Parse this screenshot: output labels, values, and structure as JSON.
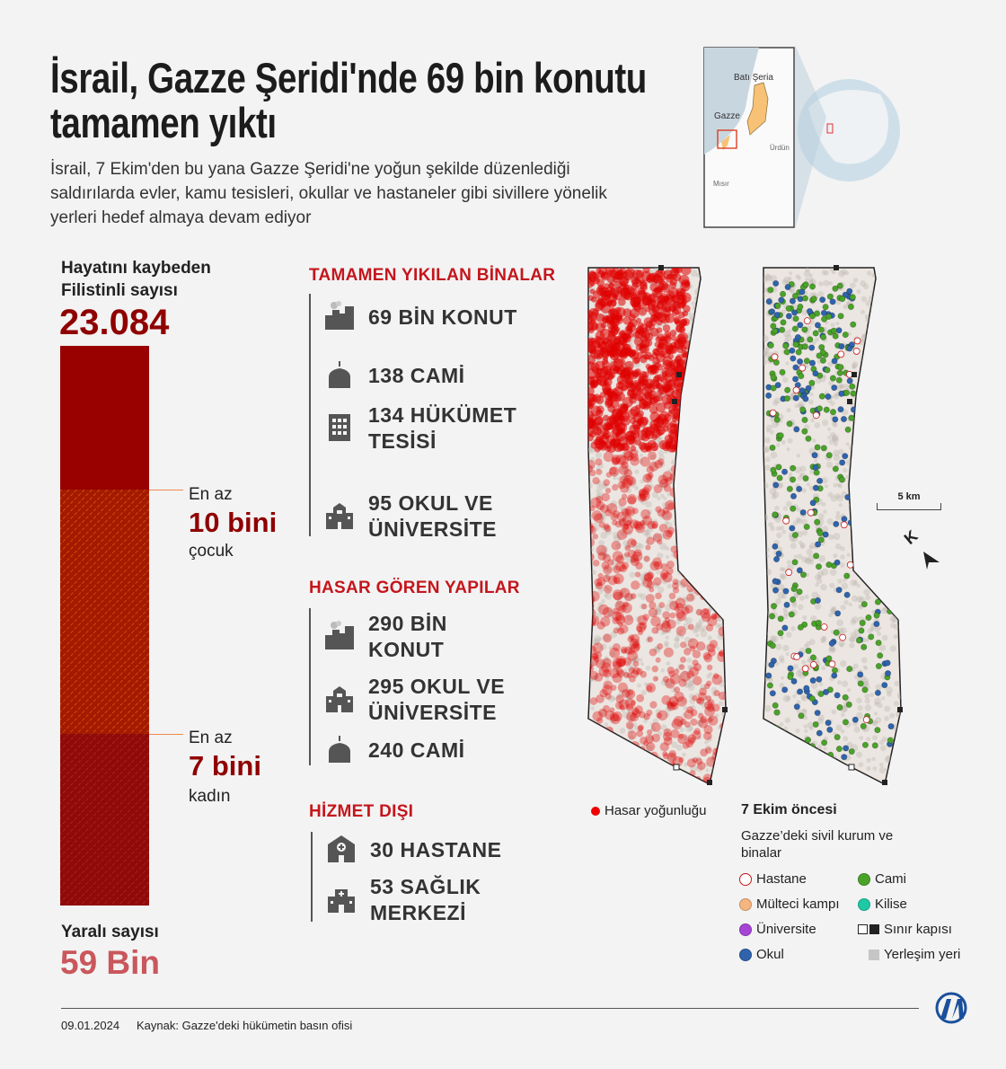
{
  "title": "İsrail, Gazze Şeridi'nde 69 bin konutu tamamen yıktı",
  "subtitle": "İsrail, 7 Ekim'den bu yana Gazze Şeridi'ne yoğun şekilde düzenlediği saldırılarda evler, kamu tesisleri, okullar ve hastaneler gibi sivillere yönelik yerleri hedef almaya devam ediyor",
  "locator": {
    "labels": [
      "Batı Şeria",
      "Gazze",
      "Ürdün",
      "Mısır"
    ]
  },
  "casualties": {
    "killed_label": "Hayatını kaybeden Filistinli sayısı",
    "killed_value": "23.084",
    "children_prefix": "En az",
    "children_value": "10 bini",
    "children_suffix": "çocuk",
    "women_prefix": "En az",
    "women_value": "7 bini",
    "women_suffix": "kadın",
    "injured_label": "Yaralı sayısı",
    "injured_value": "59 Bin",
    "bar_colors": {
      "killed": "#990000",
      "children": "#a31a00",
      "women": "#8f0a0a"
    }
  },
  "destroyed": {
    "heading": "TAMAMEN YIKILAN BİNALAR",
    "items": [
      {
        "icon": "houses-icon",
        "text": "69 BİN KONUT"
      },
      {
        "icon": "mosque-icon",
        "text": "138 CAMİ"
      },
      {
        "icon": "government-building-icon",
        "text": "134 HÜKÜMET TESİSİ"
      },
      {
        "icon": "school-icon",
        "text": "95 OKUL VE ÜNİVERSİTE"
      }
    ]
  },
  "damaged": {
    "heading": "HASAR GÖREN YAPILAR",
    "items": [
      {
        "icon": "houses-icon",
        "text": "290 BİN KONUT"
      },
      {
        "icon": "school-icon",
        "text": "295 OKUL VE ÜNİVERSİTE"
      },
      {
        "icon": "mosque-icon",
        "text": "240 CAMİ"
      }
    ]
  },
  "out_of_service": {
    "heading": "HİZMET DIŞI",
    "items": [
      {
        "icon": "hospital-icon",
        "text": "30 HASTANE"
      },
      {
        "icon": "health-center-icon",
        "text": "53 SAĞLIK MERKEZİ"
      }
    ]
  },
  "maps": {
    "damage_legend": "Hasar yoğunluğu",
    "scale": "5 km",
    "north": "K",
    "legend_title": "7 Ekim öncesi",
    "legend_subtitle": "Gazze’deki sivil kurum ve binalar",
    "legend": [
      {
        "label": "Hastane",
        "color": "#ffffff",
        "border": "#c4161c"
      },
      {
        "label": "Cami",
        "color": "#4aa329"
      },
      {
        "label": "Mülteci kampı",
        "color": "#f5b57f"
      },
      {
        "label": "Kilise",
        "color": "#20c9a6"
      },
      {
        "label": "Üniversite",
        "color": "#a545d6"
      },
      {
        "label": "Sınır kapısı",
        "color": "#222222"
      },
      {
        "label": "Okul",
        "color": "#2f64ad"
      },
      {
        "label": "Yerleşim yeri",
        "color": "#c6c6c6"
      }
    ]
  },
  "footer": {
    "date": "09.01.2024",
    "source": "Kaynak: Gazze'deki hükümetin basın ofisi",
    "logo": "AA"
  }
}
